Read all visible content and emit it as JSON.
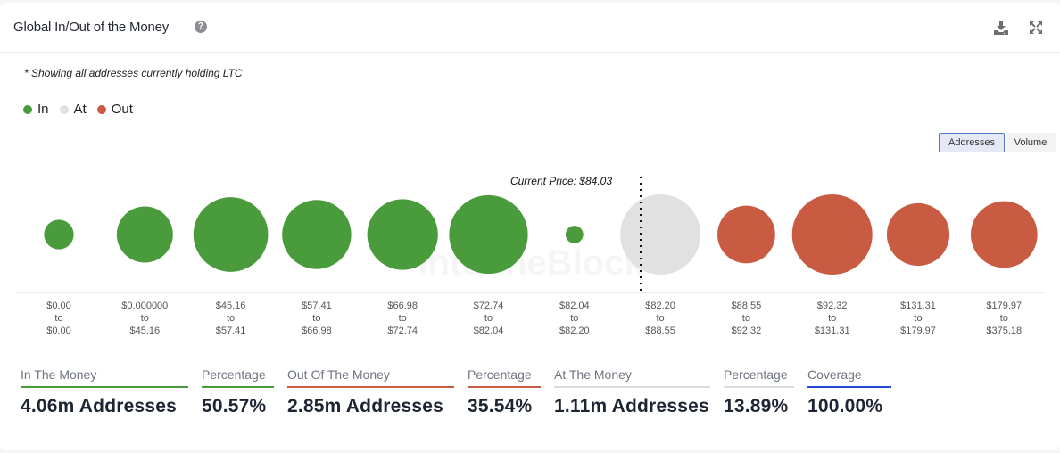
{
  "header": {
    "title": "Global In/Out of the Money",
    "help_icon": "question-circle-icon",
    "download_icon": "download-icon",
    "expand_icon": "expand-icon"
  },
  "note": "* Showing all addresses currently holding LTC",
  "legend": [
    {
      "label": "In",
      "color": "#4a9b3b"
    },
    {
      "label": "At",
      "color": "#e1e1e1"
    },
    {
      "label": "Out",
      "color": "#c95b43"
    }
  ],
  "toggles": {
    "addresses": "Addresses",
    "volume": "Volume",
    "active": "addresses"
  },
  "chart_data": {
    "type": "bubble",
    "title": "Global In/Out of the Money",
    "current_price_label": "Current Price: $84.03",
    "current_price": 84.03,
    "categories": [
      {
        "from": "$0.00",
        "to": "$0.00",
        "status": "in",
        "relative_size": 0.37
      },
      {
        "from": "$0.000000",
        "to": "$45.16",
        "status": "in",
        "relative_size": 0.7
      },
      {
        "from": "$45.16",
        "to": "$57.41",
        "status": "in",
        "relative_size": 0.93
      },
      {
        "from": "$57.41",
        "to": "$66.98",
        "status": "in",
        "relative_size": 0.86
      },
      {
        "from": "$66.98",
        "to": "$72.74",
        "status": "in",
        "relative_size": 0.88
      },
      {
        "from": "$72.74",
        "to": "$82.04",
        "status": "in",
        "relative_size": 0.98
      },
      {
        "from": "$82.04",
        "to": "$82.20",
        "status": "in",
        "relative_size": 0.22
      },
      {
        "from": "$82.20",
        "to": "$88.55",
        "status": "at",
        "relative_size": 1.0
      },
      {
        "from": "$88.55",
        "to": "$92.32",
        "status": "out",
        "relative_size": 0.72
      },
      {
        "from": "$92.32",
        "to": "$131.31",
        "status": "out",
        "relative_size": 1.0
      },
      {
        "from": "$131.31",
        "to": "$179.97",
        "status": "out",
        "relative_size": 0.78
      },
      {
        "from": "$179.97",
        "to": "$375.18",
        "status": "out",
        "relative_size": 0.83
      }
    ],
    "range_joiner": "to",
    "current_price_after_index": 7,
    "colors": {
      "in": "#4a9b3b",
      "at": "#e1e1e1",
      "out": "#c95b43"
    },
    "watermark": "IntoTheBlock"
  },
  "stats": [
    {
      "label": "In The Money",
      "value": "4.06m Addresses",
      "color": "#4a9b3b"
    },
    {
      "label": "Percentage",
      "value": "50.57%",
      "color": "#4a9b3b"
    },
    {
      "label": "Out Of The Money",
      "value": "2.85m Addresses",
      "color": "#c95b43"
    },
    {
      "label": "Percentage",
      "value": "35.54%",
      "color": "#c95b43"
    },
    {
      "label": "At The Money",
      "value": "1.11m Addresses",
      "color": "#dcdcdc"
    },
    {
      "label": "Percentage",
      "value": "13.89%",
      "color": "#dcdcdc"
    },
    {
      "label": "Coverage",
      "value": "100.00%",
      "color": "#2548d6"
    }
  ]
}
